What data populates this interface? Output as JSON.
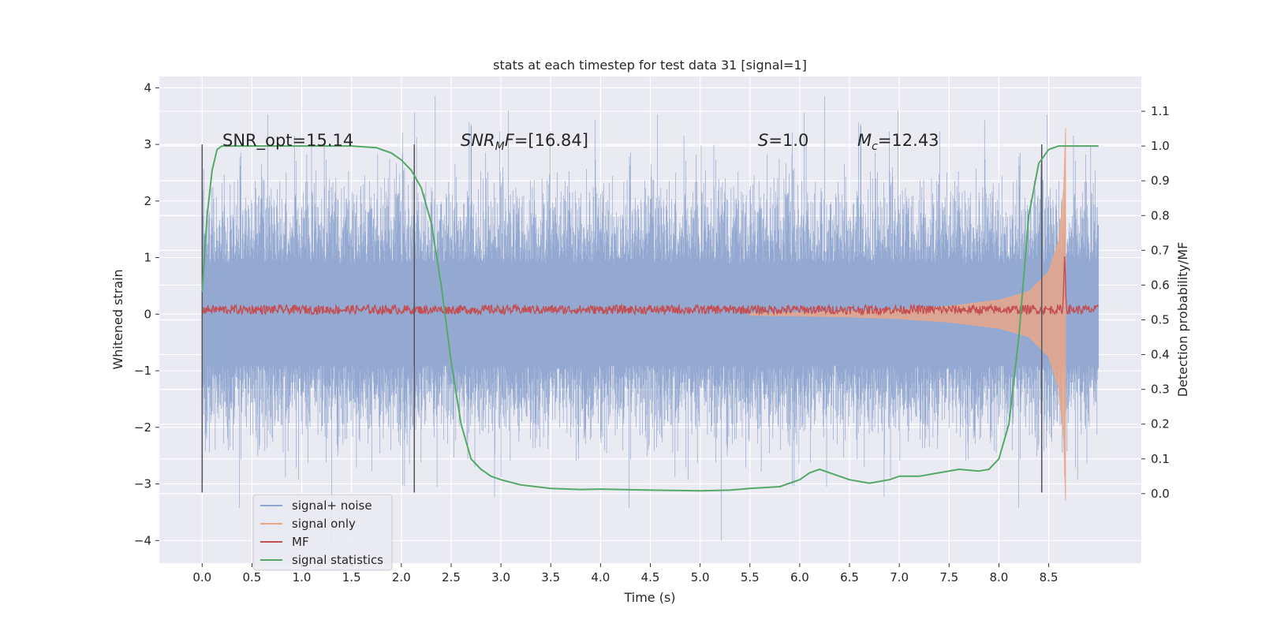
{
  "chart_data": {
    "type": "line",
    "title": "stats at each timestep for test data 31 [signal=1]",
    "xlabel": "Time (s)",
    "ylabel": "Whitened strain",
    "ylabel_right": "Detection probability/MF",
    "xlim": [
      -0.43,
      9.43
    ],
    "ylim": [
      -4.4,
      4.2
    ],
    "ylim_right": [
      -0.2,
      1.2
    ],
    "xticks": [
      0.0,
      0.5,
      1.0,
      1.5,
      2.0,
      2.5,
      3.0,
      3.5,
      4.0,
      4.5,
      5.0,
      5.5,
      6.0,
      6.5,
      7.0,
      7.5,
      8.0,
      8.5
    ],
    "xtick_labels": [
      "0.0",
      "0.5",
      "1.0",
      "1.5",
      "2.0",
      "2.5",
      "3.0",
      "3.5",
      "4.0",
      "4.5",
      "5.0",
      "5.5",
      "6.0",
      "6.5",
      "7.0",
      "7.5",
      "8.0",
      "8.5"
    ],
    "yticks": [
      -4,
      -3,
      -2,
      -1,
      0,
      1,
      2,
      3,
      4
    ],
    "ytick_labels": [
      "−4",
      "−3",
      "−2",
      "−1",
      "0",
      "1",
      "2",
      "3",
      "4"
    ],
    "yticks_right": [
      0.0,
      0.1,
      0.2,
      0.3,
      0.4,
      0.5,
      0.6,
      0.7,
      0.8,
      0.9,
      1.0,
      1.1
    ],
    "ytick_labels_right": [
      "0.0",
      "0.1",
      "0.2",
      "0.3",
      "0.4",
      "0.5",
      "0.6",
      "0.7",
      "0.8",
      "0.9",
      "1.0",
      "1.1"
    ],
    "grid": true,
    "legend_position": "lower-left",
    "series": [
      {
        "name": "signal+ noise",
        "color": "#8FA5CF",
        "axis": "left",
        "description": "whitened strain noise, amplitude roughly between -3 and 3.8, spanning 0 to 9 s"
      },
      {
        "name": "signal only",
        "color": "#E8A78A",
        "axis": "left",
        "x": [
          5.5,
          6.0,
          6.5,
          7.0,
          7.5,
          8.0,
          8.3,
          8.5,
          8.6,
          8.65,
          8.67
        ],
        "amplitude": [
          0.02,
          0.03,
          0.05,
          0.08,
          0.14,
          0.25,
          0.4,
          0.75,
          1.3,
          2.2,
          3.3
        ]
      },
      {
        "name": "MF",
        "color": "#C44E52",
        "axis": "left",
        "mean": 0.08,
        "peak_x": 8.66,
        "peak_y": 1.0
      },
      {
        "name": "signal statistics",
        "color": "#55A868",
        "axis": "right",
        "x": [
          0.0,
          0.05,
          0.1,
          0.15,
          0.2,
          0.3,
          0.5,
          1.0,
          1.5,
          1.75,
          1.9,
          2.0,
          2.1,
          2.2,
          2.3,
          2.4,
          2.5,
          2.6,
          2.7,
          2.8,
          2.9,
          3.0,
          3.2,
          3.5,
          3.8,
          4.0,
          4.5,
          5.0,
          5.3,
          5.5,
          5.8,
          6.0,
          6.1,
          6.2,
          6.3,
          6.5,
          6.7,
          6.9,
          7.0,
          7.2,
          7.4,
          7.6,
          7.8,
          7.9,
          8.0,
          8.1,
          8.2,
          8.3,
          8.4,
          8.5,
          8.6,
          8.8,
          9.0
        ],
        "y": [
          0.58,
          0.8,
          0.93,
          0.99,
          1.0,
          1.0,
          1.0,
          1.0,
          1.0,
          0.995,
          0.98,
          0.96,
          0.93,
          0.88,
          0.78,
          0.6,
          0.38,
          0.2,
          0.1,
          0.07,
          0.05,
          0.04,
          0.025,
          0.015,
          0.012,
          0.013,
          0.01,
          0.008,
          0.01,
          0.015,
          0.02,
          0.04,
          0.06,
          0.07,
          0.06,
          0.04,
          0.03,
          0.04,
          0.05,
          0.05,
          0.06,
          0.07,
          0.065,
          0.07,
          0.1,
          0.2,
          0.45,
          0.8,
          0.95,
          0.99,
          1.0,
          1.0,
          1.0
        ]
      }
    ],
    "vlines": [
      0.0,
      2.13,
      8.43
    ],
    "vline_range": [
      -3.15,
      3.0
    ],
    "annotations": [
      {
        "text": "SNR_opt=15.14",
        "x": 0.2,
        "y": 3.1
      },
      {
        "text": "=[16.84]",
        "math_base": "SNR",
        "math_sub": "M",
        "math_tail": "F",
        "x": 2.6,
        "y": 3.1
      },
      {
        "text": "=1.0",
        "math_base": "S",
        "x": 5.6,
        "y": 3.1
      },
      {
        "text": "=12.43",
        "math_base": "M",
        "math_sub": "c",
        "x": 6.6,
        "y": 3.1
      }
    ]
  }
}
